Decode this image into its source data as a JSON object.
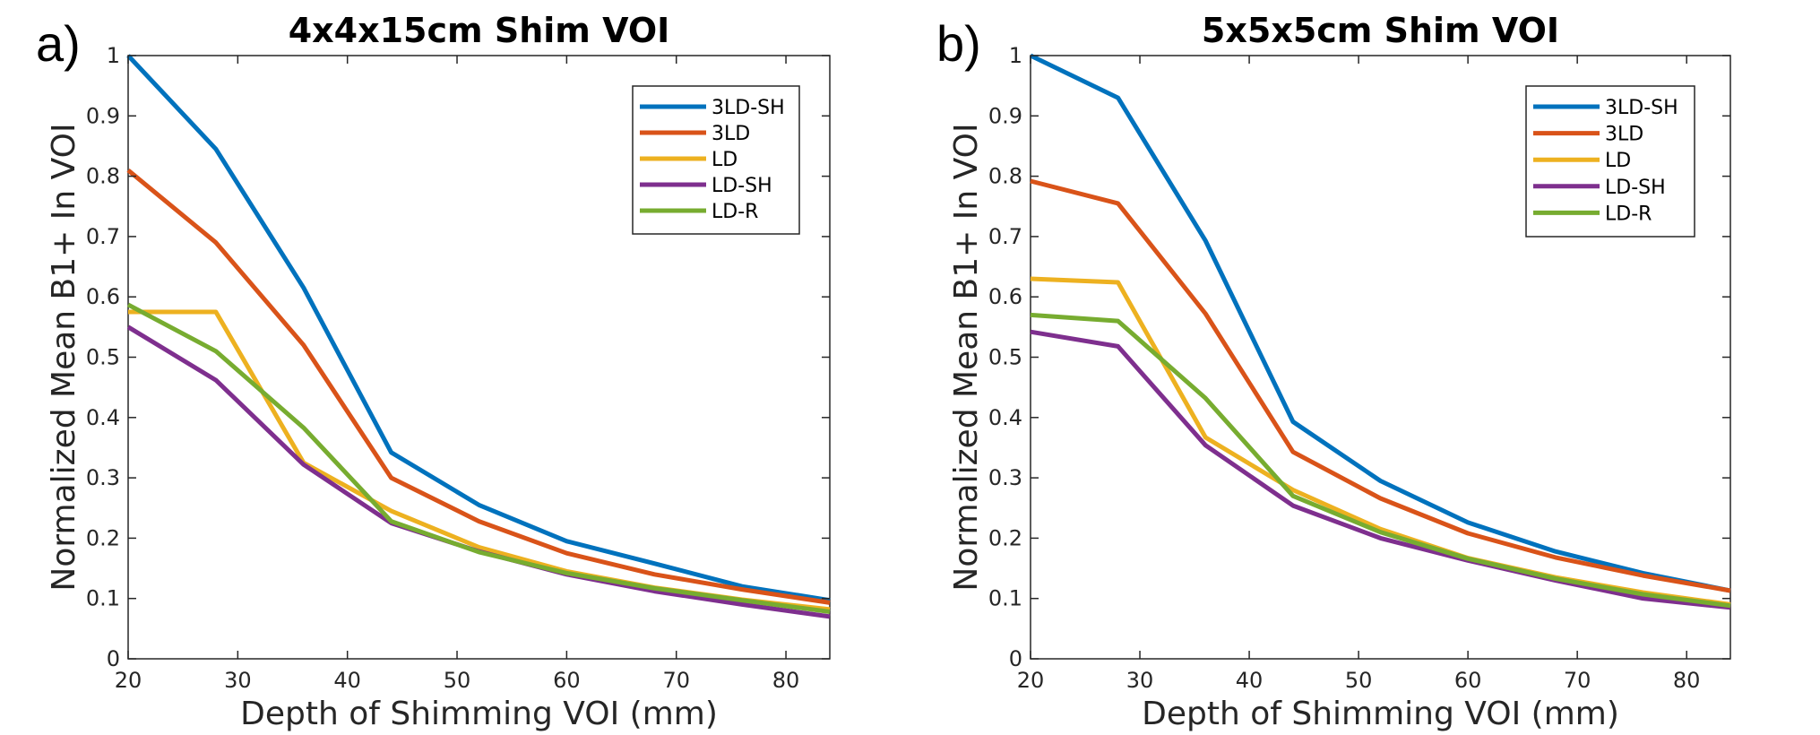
{
  "chart_data": [
    {
      "type": "line",
      "panel_label": "a)",
      "title": "4x4x15cm Shim VOI",
      "xlabel": "Depth of Shimming VOI (mm)",
      "ylabel": "Normalized Mean B1+ In VOI",
      "xlim": [
        20,
        84
      ],
      "ylim": [
        0,
        1
      ],
      "xticks": [
        20,
        30,
        40,
        50,
        60,
        70,
        80
      ],
      "xtick_labels": [
        "20",
        "30",
        "40",
        "50",
        "60",
        "70",
        "80"
      ],
      "yticks": [
        0,
        0.1,
        0.2,
        0.3,
        0.4,
        0.5,
        0.6,
        0.7,
        0.8,
        0.9,
        1
      ],
      "ytick_labels": [
        "0",
        "0.1",
        "0.2",
        "0.3",
        "0.4",
        "0.5",
        "0.6",
        "0.7",
        "0.8",
        "0.9",
        "1"
      ],
      "grid": false,
      "legend_position": "top-right",
      "x": [
        20,
        28,
        36,
        44,
        52,
        60,
        68,
        76,
        84
      ],
      "series": [
        {
          "name": "3LD-SH",
          "color": "#0072BD",
          "values": [
            1.0,
            0.845,
            0.615,
            0.342,
            0.255,
            0.195,
            0.158,
            0.12,
            0.097
          ]
        },
        {
          "name": "3LD",
          "color": "#D95319",
          "values": [
            0.81,
            0.69,
            0.52,
            0.3,
            0.228,
            0.175,
            0.14,
            0.115,
            0.093
          ]
        },
        {
          "name": "LD",
          "color": "#EDB120",
          "values": [
            0.575,
            0.575,
            0.325,
            0.245,
            0.185,
            0.145,
            0.118,
            0.098,
            0.082
          ]
        },
        {
          "name": "LD-SH",
          "color": "#7E2F8E",
          "values": [
            0.55,
            0.462,
            0.322,
            0.225,
            0.178,
            0.14,
            0.112,
            0.09,
            0.07
          ]
        },
        {
          "name": "LD-R",
          "color": "#77AC30",
          "values": [
            0.587,
            0.51,
            0.383,
            0.228,
            0.177,
            0.142,
            0.117,
            0.097,
            0.078
          ]
        }
      ]
    },
    {
      "type": "line",
      "panel_label": "b)",
      "title": "5x5x5cm Shim VOI",
      "xlabel": "Depth of Shimming VOI (mm)",
      "ylabel": "Normalized Mean B1+ In VOI",
      "xlim": [
        20,
        84
      ],
      "ylim": [
        0,
        1
      ],
      "xticks": [
        20,
        30,
        40,
        50,
        60,
        70,
        80
      ],
      "xtick_labels": [
        "20",
        "30",
        "40",
        "50",
        "60",
        "70",
        "80"
      ],
      "yticks": [
        0,
        0.1,
        0.2,
        0.3,
        0.4,
        0.5,
        0.6,
        0.7,
        0.8,
        0.9,
        1
      ],
      "ytick_labels": [
        "0",
        "0.1",
        "0.2",
        "0.3",
        "0.4",
        "0.5",
        "0.6",
        "0.7",
        "0.8",
        "0.9",
        "1"
      ],
      "grid": false,
      "legend_position": "top-right",
      "x": [
        20,
        28,
        36,
        44,
        52,
        60,
        68,
        76,
        84
      ],
      "series": [
        {
          "name": "3LD-SH",
          "color": "#0072BD",
          "values": [
            1.0,
            0.93,
            0.693,
            0.393,
            0.295,
            0.226,
            0.178,
            0.142,
            0.113
          ]
        },
        {
          "name": "3LD",
          "color": "#D95319",
          "values": [
            0.792,
            0.755,
            0.572,
            0.343,
            0.266,
            0.208,
            0.168,
            0.138,
            0.113
          ]
        },
        {
          "name": "LD",
          "color": "#EDB120",
          "values": [
            0.63,
            0.624,
            0.367,
            0.28,
            0.215,
            0.167,
            0.135,
            0.11,
            0.09
          ]
        },
        {
          "name": "LD-SH",
          "color": "#7E2F8E",
          "values": [
            0.542,
            0.518,
            0.354,
            0.254,
            0.2,
            0.163,
            0.13,
            0.1,
            0.085
          ]
        },
        {
          "name": "LD-R",
          "color": "#77AC30",
          "values": [
            0.57,
            0.56,
            0.432,
            0.27,
            0.21,
            0.166,
            0.133,
            0.107,
            0.088
          ]
        }
      ]
    }
  ]
}
